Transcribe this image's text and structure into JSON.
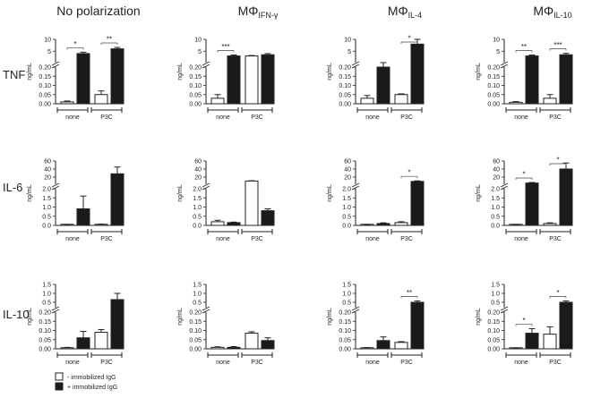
{
  "figure": {
    "columns": [
      {
        "title": "No polarization",
        "sub": ""
      },
      {
        "title": "MΦ",
        "sub": "IFN-γ"
      },
      {
        "title": "MΦ",
        "sub": "IL-4"
      },
      {
        "title": "MΦ",
        "sub": "IL-10"
      }
    ],
    "rows": [
      {
        "label": "TNF"
      },
      {
        "label": "IL-6"
      },
      {
        "label": "IL-10"
      }
    ],
    "legend": [
      {
        "label": "- immobilized IgG",
        "color": "#ffffff"
      },
      {
        "label": "+ immobilized IgG",
        "color": "#1a1a1a"
      }
    ]
  },
  "chart_data": [
    {
      "type": "bar",
      "row": "TNF",
      "column": "No polarization",
      "ylabel": "ng/mL",
      "upper_ticks": [
        "10",
        "5"
      ],
      "lower_ticks": [
        "0.20",
        "0.15",
        "0.10",
        "0.05",
        "0.00"
      ],
      "categories": [
        "none",
        "P3C"
      ],
      "series": [
        {
          "name": "- immobilized IgG",
          "values": [
            0.01,
            0.05
          ],
          "errors": [
            0.005,
            0.02
          ],
          "segment": [
            "lower",
            "lower"
          ]
        },
        {
          "name": "+ immobilized IgG",
          "values": [
            4,
            6
          ],
          "errors": [
            0.6,
            0.6
          ],
          "segment": [
            "upper",
            "upper"
          ]
        }
      ],
      "significance": [
        {
          "pair": "none",
          "label": "*"
        },
        {
          "pair": "P3C",
          "label": "**"
        }
      ]
    },
    {
      "type": "bar",
      "row": "TNF",
      "column": "MΦIFN-γ",
      "ylabel": "ng/mL",
      "upper_ticks": [
        "10",
        "5"
      ],
      "lower_ticks": [
        "0.20",
        "0.15",
        "0.10",
        "0.05",
        "0.00"
      ],
      "categories": [
        "none",
        "P3C"
      ],
      "series": [
        {
          "name": "- immobilized IgG",
          "values": [
            0.03,
            3
          ],
          "errors": [
            0.02,
            0.2
          ],
          "segment": [
            "lower",
            "upper"
          ]
        },
        {
          "name": "+ immobilized IgG",
          "values": [
            3,
            3.5
          ],
          "errors": [
            0.4,
            0.5
          ],
          "segment": [
            "upper",
            "upper"
          ]
        }
      ],
      "significance": [
        {
          "pair": "none",
          "label": "***"
        }
      ]
    },
    {
      "type": "bar",
      "row": "TNF",
      "column": "MΦIL-4",
      "ylabel": "ng/mL",
      "upper_ticks": [
        "10",
        "5"
      ],
      "lower_ticks": [
        "0.20",
        "0.15",
        "0.10",
        "0.05",
        "0.00"
      ],
      "categories": [
        "none",
        "P3C"
      ],
      "series": [
        {
          "name": "- immobilized IgG",
          "values": [
            0.03,
            0.05
          ],
          "errors": [
            0.015,
            0.004
          ],
          "segment": [
            "lower",
            "lower"
          ]
        },
        {
          "name": "+ immobilized IgG",
          "values": [
            0.2,
            8
          ],
          "errors": [
            0.005,
            2.5
          ],
          "segment": [
            "lower",
            "upper"
          ]
        }
      ],
      "significance": [
        {
          "pair": "P3C",
          "label": "*"
        }
      ]
    },
    {
      "type": "bar",
      "row": "TNF",
      "column": "MΦIL-10",
      "ylabel": "ng/mL",
      "upper_ticks": [
        "10",
        "5"
      ],
      "lower_ticks": [
        "0.20",
        "0.15",
        "0.10",
        "0.05",
        "0.00"
      ],
      "categories": [
        "none",
        "P3C"
      ],
      "series": [
        {
          "name": "- immobilized IgG",
          "values": [
            0.008,
            0.03
          ],
          "errors": [
            0.004,
            0.02
          ],
          "segment": [
            "lower",
            "lower"
          ]
        },
        {
          "name": "+ immobilized IgG",
          "values": [
            3,
            3.5
          ],
          "errors": [
            0.4,
            0.6
          ],
          "segment": [
            "upper",
            "upper"
          ]
        }
      ],
      "significance": [
        {
          "pair": "none",
          "label": "**"
        },
        {
          "pair": "P3C",
          "label": "***"
        }
      ]
    },
    {
      "type": "bar",
      "row": "IL-6",
      "column": "No polarization",
      "ylabel": "ng/mL",
      "upper_ticks": [
        "60",
        "40",
        "20"
      ],
      "lower_ticks": [
        "2.0",
        "1.5",
        "1.0",
        "0.5",
        "0.0"
      ],
      "categories": [
        "none",
        "P3C"
      ],
      "series": [
        {
          "name": "- immobilized IgG",
          "values": [
            0.02,
            0.05
          ],
          "errors": [
            0.01,
            0.02
          ],
          "segment": [
            "lower",
            "lower"
          ]
        },
        {
          "name": "+ immobilized IgG",
          "values": [
            0.9,
            28
          ],
          "errors": [
            0.7,
            17
          ],
          "segment": [
            "lower",
            "upper"
          ]
        }
      ],
      "significance": []
    },
    {
      "type": "bar",
      "row": "IL-6",
      "column": "MΦIFN-γ",
      "ylabel": "ng/mL",
      "upper_ticks": [
        "60",
        "40",
        "20"
      ],
      "lower_ticks": [
        "2.0",
        "1.5",
        "1.0",
        "0.5",
        "0.0"
      ],
      "categories": [
        "none",
        "P3C"
      ],
      "series": [
        {
          "name": "- immobilized IgG",
          "values": [
            0.2,
            10
          ],
          "errors": [
            0.08,
            0.8
          ],
          "segment": [
            "lower",
            "upper"
          ]
        },
        {
          "name": "+ immobilized IgG",
          "values": [
            0.15,
            0.8
          ],
          "errors": [
            0.03,
            0.1
          ],
          "segment": [
            "lower",
            "lower"
          ]
        }
      ],
      "significance": []
    },
    {
      "type": "bar",
      "row": "IL-6",
      "column": "MΦIL-4",
      "ylabel": "ng/mL",
      "upper_ticks": [
        "60",
        "40",
        "20"
      ],
      "lower_ticks": [
        "2.0",
        "1.5",
        "1.0",
        "0.5",
        "0.0"
      ],
      "categories": [
        "none",
        "P3C"
      ],
      "series": [
        {
          "name": "- immobilized IgG",
          "values": [
            0.02,
            0.15
          ],
          "errors": [
            0.01,
            0.05
          ],
          "segment": [
            "lower",
            "lower"
          ]
        },
        {
          "name": "+ immobilized IgG",
          "values": [
            0.1,
            9
          ],
          "errors": [
            0.04,
            1.5
          ],
          "segment": [
            "lower",
            "upper"
          ]
        }
      ],
      "significance": [
        {
          "pair": "P3C",
          "label": "*"
        }
      ]
    },
    {
      "type": "bar",
      "row": "IL-6",
      "column": "MΦIL-10",
      "ylabel": "ng/mL",
      "upper_ticks": [
        "60",
        "40",
        "20"
      ],
      "lower_ticks": [
        "2.0",
        "1.5",
        "1.0",
        "0.5",
        "0.0"
      ],
      "categories": [
        "none",
        "P3C"
      ],
      "series": [
        {
          "name": "- immobilized IgG",
          "values": [
            0.03,
            0.1
          ],
          "errors": [
            0.02,
            0.04
          ],
          "segment": [
            "lower",
            "lower"
          ]
        },
        {
          "name": "+ immobilized IgG",
          "values": [
            5,
            40
          ],
          "errors": [
            1.5,
            15
          ],
          "segment": [
            "upper",
            "upper"
          ]
        }
      ],
      "significance": [
        {
          "pair": "none",
          "label": "*"
        },
        {
          "pair": "P3C",
          "label": "*"
        }
      ]
    },
    {
      "type": "bar",
      "row": "IL-10",
      "column": "No polarization",
      "ylabel": "ng/mL",
      "upper_ticks": [
        "1.5",
        "1.0",
        "0.5"
      ],
      "lower_ticks": [
        "0.20",
        "0.15",
        "0.10",
        "0.05",
        "0.00"
      ],
      "categories": [
        "none",
        "P3C"
      ],
      "series": [
        {
          "name": "- immobilized IgG",
          "values": [
            0.005,
            0.09
          ],
          "errors": [
            0.003,
            0.015
          ],
          "segment": [
            "lower",
            "lower"
          ]
        },
        {
          "name": "+ immobilized IgG",
          "values": [
            0.06,
            0.65
          ],
          "errors": [
            0.035,
            0.35
          ],
          "segment": [
            "lower",
            "upper"
          ]
        }
      ],
      "significance": []
    },
    {
      "type": "bar",
      "row": "IL-10",
      "column": "MΦIFN-γ",
      "ylabel": "ng/mL",
      "upper_ticks": [
        "1.5",
        "1.0",
        "0.5"
      ],
      "lower_ticks": [
        "0.20",
        "0.15",
        "0.10",
        "0.05",
        "0.00"
      ],
      "categories": [
        "none",
        "P3C"
      ],
      "series": [
        {
          "name": "- immobilized IgG",
          "values": [
            0.008,
            0.085
          ],
          "errors": [
            0.003,
            0.008
          ],
          "segment": [
            "lower",
            "lower"
          ]
        },
        {
          "name": "+ immobilized IgG",
          "values": [
            0.008,
            0.045
          ],
          "errors": [
            0.004,
            0.015
          ],
          "segment": [
            "lower",
            "lower"
          ]
        }
      ],
      "significance": []
    },
    {
      "type": "bar",
      "row": "IL-10",
      "column": "MΦIL-4",
      "ylabel": "ng/mL",
      "upper_ticks": [
        "1.5",
        "1.0",
        "0.5"
      ],
      "lower_ticks": [
        "0.20",
        "0.15",
        "0.10",
        "0.05",
        "0.00"
      ],
      "categories": [
        "none",
        "P3C"
      ],
      "series": [
        {
          "name": "- immobilized IgG",
          "values": [
            0.005,
            0.035
          ],
          "errors": [
            0.002,
            0.004
          ],
          "segment": [
            "lower",
            "lower"
          ]
        },
        {
          "name": "+ immobilized IgG",
          "values": [
            0.045,
            0.5
          ],
          "errors": [
            0.02,
            0.08
          ],
          "segment": [
            "lower",
            "upper"
          ]
        }
      ],
      "significance": [
        {
          "pair": "P3C",
          "label": "**"
        }
      ]
    },
    {
      "type": "bar",
      "row": "IL-10",
      "column": "MΦIL-10",
      "ylabel": "ng/mL",
      "upper_ticks": [
        "1.5",
        "1.0",
        "0.5"
      ],
      "lower_ticks": [
        "0.20",
        "0.15",
        "0.10",
        "0.05",
        "0.00"
      ],
      "categories": [
        "none",
        "P3C"
      ],
      "series": [
        {
          "name": "- immobilized IgG",
          "values": [
            0.003,
            0.08
          ],
          "errors": [
            0.001,
            0.04
          ],
          "segment": [
            "lower",
            "lower"
          ]
        },
        {
          "name": "+ immobilized IgG",
          "values": [
            0.085,
            0.5
          ],
          "errors": [
            0.025,
            0.08
          ],
          "segment": [
            "lower",
            "upper"
          ]
        }
      ],
      "significance": [
        {
          "pair": "none",
          "label": "*"
        },
        {
          "pair": "P3C",
          "label": "*"
        }
      ]
    }
  ]
}
